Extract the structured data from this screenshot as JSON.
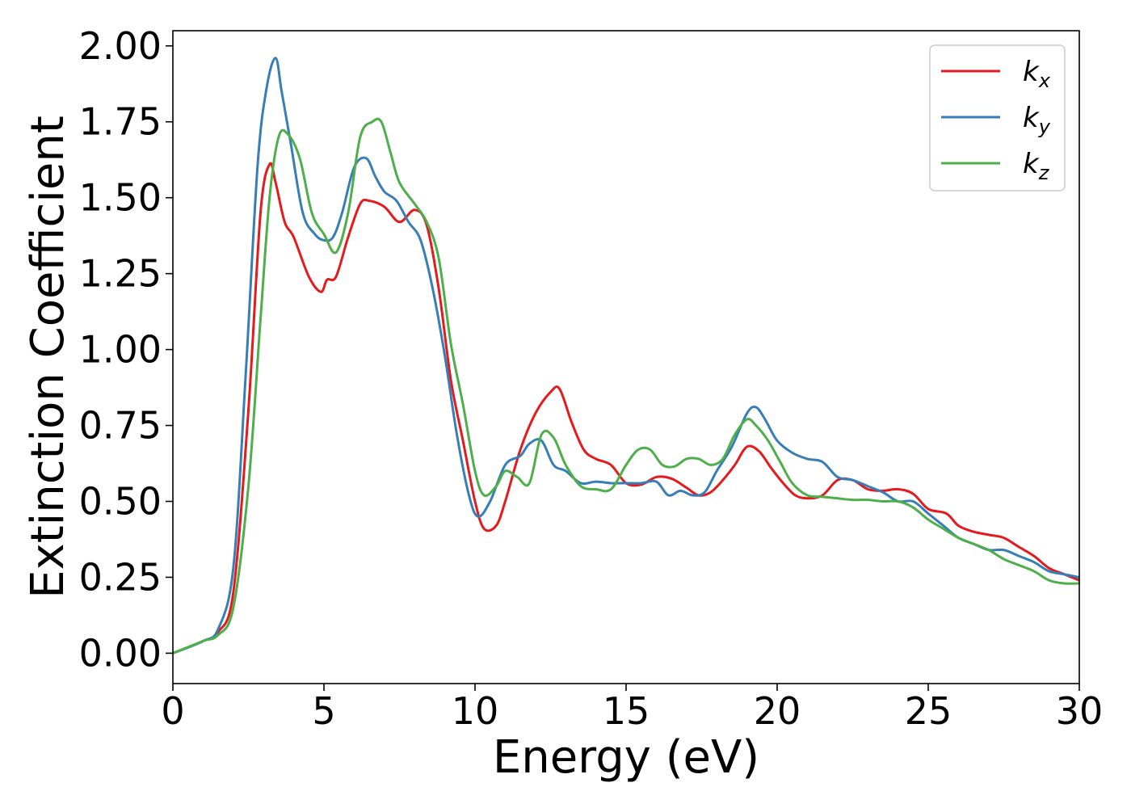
{
  "chart_data": {
    "type": "line",
    "xlabel": "Energy (eV)",
    "ylabel": "Extinction Coefficient",
    "xlim": [
      0,
      30
    ],
    "ylim": [
      -0.1,
      2.05
    ],
    "xticks": [
      0,
      5,
      10,
      15,
      20,
      25,
      30
    ],
    "xtick_labels": [
      "0",
      "5",
      "10",
      "15",
      "20",
      "25",
      "30"
    ],
    "yticks": [
      0.0,
      0.25,
      0.5,
      0.75,
      1.0,
      1.25,
      1.5,
      1.75,
      2.0
    ],
    "ytick_labels": [
      "0.00",
      "0.25",
      "0.50",
      "0.75",
      "1.00",
      "1.25",
      "1.50",
      "1.75",
      "2.00"
    ],
    "grid": false,
    "legend_position": "top-right",
    "series": [
      {
        "name": "kx",
        "label_main": "k",
        "label_sub": "x",
        "color": "#e41a1c",
        "x": [
          0,
          1,
          1.5,
          2.0,
          2.5,
          2.9,
          3.2,
          3.4,
          3.7,
          4.0,
          4.5,
          4.9,
          5.1,
          5.4,
          5.8,
          6.2,
          6.5,
          7.0,
          7.5,
          8.0,
          8.4,
          8.8,
          9.2,
          9.6,
          10.0,
          10.3,
          10.7,
          11.0,
          11.5,
          12.0,
          12.5,
          12.8,
          13.2,
          13.6,
          14.0,
          14.5,
          15.0,
          15.5,
          16.0,
          16.5,
          17.0,
          17.4,
          17.8,
          18.2,
          18.6,
          19.0,
          19.4,
          19.8,
          20.2,
          20.6,
          21.0,
          21.5,
          22.0,
          22.5,
          23.0,
          23.5,
          24.0,
          24.5,
          25.0,
          25.6,
          26.0,
          26.5,
          27.0,
          27.5,
          28.0,
          28.5,
          29.0,
          29.5,
          30.0
        ],
        "values": [
          0.0,
          0.04,
          0.07,
          0.2,
          0.8,
          1.45,
          1.61,
          1.55,
          1.42,
          1.37,
          1.24,
          1.19,
          1.23,
          1.24,
          1.37,
          1.48,
          1.49,
          1.47,
          1.42,
          1.46,
          1.41,
          1.2,
          0.9,
          0.7,
          0.5,
          0.41,
          0.42,
          0.5,
          0.67,
          0.79,
          0.86,
          0.87,
          0.76,
          0.67,
          0.64,
          0.62,
          0.56,
          0.555,
          0.58,
          0.575,
          0.545,
          0.52,
          0.53,
          0.57,
          0.62,
          0.68,
          0.665,
          0.61,
          0.56,
          0.52,
          0.51,
          0.52,
          0.57,
          0.57,
          0.54,
          0.535,
          0.54,
          0.525,
          0.475,
          0.46,
          0.42,
          0.4,
          0.39,
          0.38,
          0.35,
          0.32,
          0.28,
          0.26,
          0.24
        ]
      },
      {
        "name": "ky",
        "label_main": "k",
        "label_sub": "y",
        "color": "#377eb8",
        "x": [
          0,
          1,
          1.5,
          2.0,
          2.4,
          2.8,
          3.1,
          3.4,
          3.6,
          3.9,
          4.3,
          4.7,
          5.0,
          5.3,
          5.6,
          6.0,
          6.4,
          6.7,
          7.0,
          7.4,
          7.8,
          8.2,
          8.6,
          9.0,
          9.4,
          9.8,
          10.1,
          10.5,
          11.0,
          11.5,
          11.8,
          12.2,
          12.6,
          13.0,
          13.5,
          14.0,
          14.5,
          15.0,
          15.5,
          16.0,
          16.4,
          16.8,
          17.2,
          17.6,
          18.0,
          18.5,
          19.0,
          19.3,
          19.6,
          20.0,
          20.5,
          21.0,
          21.5,
          22.0,
          22.5,
          23.0,
          23.5,
          24.0,
          24.5,
          25.0,
          25.5,
          26.0,
          26.5,
          27.0,
          27.5,
          28.0,
          28.5,
          29.0,
          29.5,
          30.0
        ],
        "values": [
          0.0,
          0.04,
          0.08,
          0.28,
          0.9,
          1.6,
          1.86,
          1.96,
          1.85,
          1.68,
          1.45,
          1.38,
          1.36,
          1.37,
          1.45,
          1.6,
          1.63,
          1.57,
          1.52,
          1.49,
          1.42,
          1.36,
          1.2,
          0.98,
          0.72,
          0.52,
          0.45,
          0.5,
          0.62,
          0.65,
          0.69,
          0.7,
          0.62,
          0.6,
          0.56,
          0.565,
          0.56,
          0.56,
          0.56,
          0.565,
          0.52,
          0.535,
          0.52,
          0.53,
          0.6,
          0.68,
          0.79,
          0.81,
          0.77,
          0.7,
          0.66,
          0.64,
          0.63,
          0.58,
          0.57,
          0.55,
          0.53,
          0.5,
          0.5,
          0.46,
          0.42,
          0.38,
          0.36,
          0.34,
          0.34,
          0.32,
          0.3,
          0.27,
          0.26,
          0.25
        ]
      },
      {
        "name": "kz",
        "label_main": "k",
        "label_sub": "z",
        "color": "#4daf4a",
        "x": [
          0,
          1,
          1.5,
          2.0,
          2.5,
          2.9,
          3.2,
          3.5,
          3.8,
          4.2,
          4.6,
          5.0,
          5.4,
          5.8,
          6.2,
          6.6,
          6.9,
          7.2,
          7.5,
          8.0,
          8.4,
          8.8,
          9.2,
          9.6,
          10.0,
          10.3,
          10.7,
          11.0,
          11.4,
          11.8,
          12.2,
          12.6,
          13.0,
          13.5,
          14.0,
          14.5,
          15.0,
          15.4,
          15.8,
          16.2,
          16.6,
          17.0,
          17.4,
          17.8,
          18.2,
          18.6,
          19.0,
          19.3,
          19.7,
          20.1,
          20.5,
          21.0,
          21.5,
          22.0,
          22.5,
          23.0,
          23.5,
          24.0,
          24.5,
          25.0,
          25.5,
          26.0,
          26.5,
          27.0,
          27.5,
          28.0,
          28.5,
          29.0,
          29.5,
          30.0
        ],
        "values": [
          0.0,
          0.04,
          0.06,
          0.15,
          0.55,
          1.1,
          1.5,
          1.7,
          1.71,
          1.63,
          1.45,
          1.38,
          1.32,
          1.45,
          1.7,
          1.75,
          1.75,
          1.65,
          1.55,
          1.48,
          1.42,
          1.3,
          1.02,
          0.82,
          0.6,
          0.52,
          0.55,
          0.6,
          0.58,
          0.56,
          0.72,
          0.71,
          0.62,
          0.55,
          0.54,
          0.54,
          0.62,
          0.67,
          0.67,
          0.62,
          0.615,
          0.64,
          0.64,
          0.62,
          0.64,
          0.72,
          0.77,
          0.75,
          0.7,
          0.63,
          0.56,
          0.52,
          0.515,
          0.51,
          0.505,
          0.505,
          0.5,
          0.5,
          0.48,
          0.44,
          0.41,
          0.38,
          0.36,
          0.34,
          0.31,
          0.29,
          0.27,
          0.24,
          0.23,
          0.23
        ]
      }
    ]
  }
}
